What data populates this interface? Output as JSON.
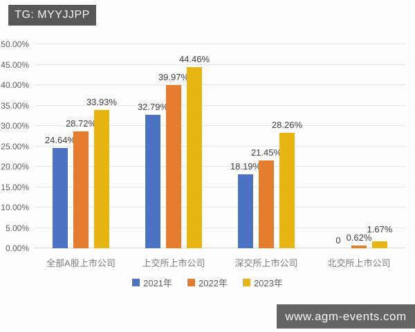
{
  "watermarks": {
    "telegram": "TG: MYYJJPP",
    "website": "www.agm-events.com"
  },
  "chart_data": {
    "type": "bar",
    "title": "",
    "categories": [
      "全部A股上市公司",
      "上交所上市公司",
      "深交所上市公司",
      "北交所上市公司"
    ],
    "series": [
      {
        "name": "2021年",
        "color": "#4D72C4",
        "values": [
          24.64,
          32.79,
          18.19,
          0
        ],
        "labels": [
          "24.64%",
          "32.79%",
          "18.19%",
          "0"
        ]
      },
      {
        "name": "2022年",
        "color": "#E57C2E",
        "values": [
          28.72,
          39.97,
          21.45,
          0.62
        ],
        "labels": [
          "28.72%",
          "39.97%",
          "21.45%",
          "0.62%"
        ]
      },
      {
        "name": "2023年",
        "color": "#E8B414",
        "values": [
          33.93,
          44.46,
          28.26,
          1.67
        ],
        "labels": [
          "33.93%",
          "44.46%",
          "28.26%",
          "1.67%"
        ]
      }
    ],
    "ylim": [
      0,
      50
    ],
    "ytick_step": 5,
    "yticks": [
      "0.00%",
      "5.00%",
      "10.00%",
      "15.00%",
      "20.00%",
      "25.00%",
      "30.00%",
      "35.00%",
      "40.00%",
      "45.00%",
      "50.00%"
    ],
    "grid": true,
    "legend_position": "bottom"
  }
}
